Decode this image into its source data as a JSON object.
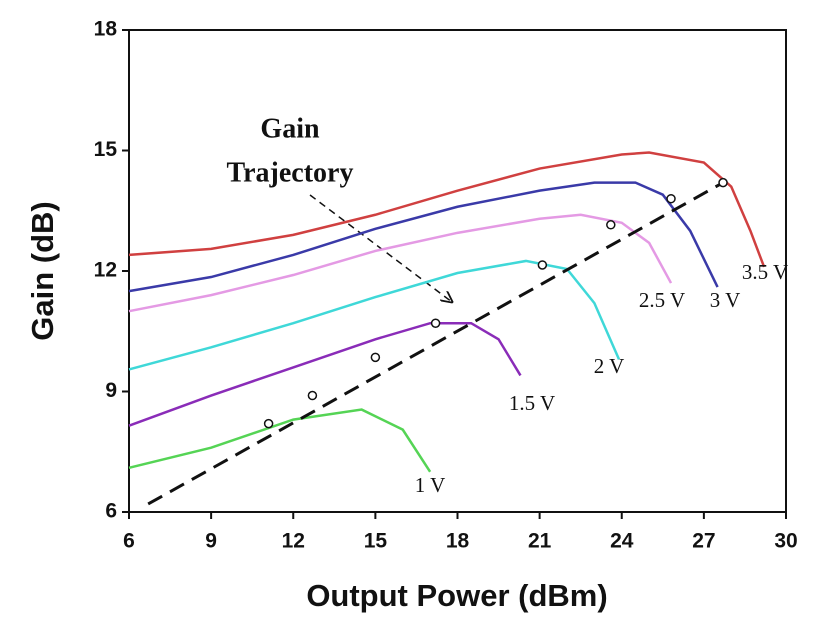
{
  "chart_data": {
    "type": "line",
    "xlabel": "Output Power (dBm)",
    "ylabel": "Gain (dB)",
    "xlim": [
      6,
      30
    ],
    "xticks": [
      6,
      9,
      12,
      15,
      18,
      21,
      24,
      27,
      30
    ],
    "ylim": [
      6,
      18
    ],
    "yticks": [
      6,
      9,
      12,
      15,
      18
    ],
    "series": [
      {
        "name": "1 V",
        "color": "#55d455",
        "x": [
          6,
          9,
          12,
          14.5,
          16,
          17
        ],
        "values": [
          7.1,
          7.6,
          8.3,
          8.55,
          8.05,
          7.0
        ]
      },
      {
        "name": "1.5 V",
        "color": "#8a2cb8",
        "x": [
          6,
          9,
          12,
          15,
          17,
          18.5,
          19.5,
          20.3
        ],
        "values": [
          8.15,
          8.9,
          9.6,
          10.3,
          10.7,
          10.7,
          10.3,
          9.4
        ]
      },
      {
        "name": "2 V",
        "color": "#3fd8d8",
        "x": [
          6,
          9,
          12,
          15,
          18,
          20.5,
          22,
          23,
          23.9
        ],
        "values": [
          9.55,
          10.1,
          10.7,
          11.35,
          11.95,
          12.25,
          12.05,
          11.2,
          9.8
        ]
      },
      {
        "name": "2.5 V",
        "color": "#e49ae4",
        "x": [
          6,
          9,
          12,
          15,
          18,
          21,
          22.5,
          24,
          25,
          25.8
        ],
        "values": [
          11.0,
          11.4,
          11.9,
          12.5,
          12.95,
          13.3,
          13.4,
          13.2,
          12.7,
          11.7
        ]
      },
      {
        "name": "3 V",
        "color": "#3a3aa8",
        "x": [
          6,
          9,
          12,
          15,
          18,
          21,
          23,
          24.5,
          25.5,
          26.5,
          27.5
        ],
        "values": [
          11.5,
          11.85,
          12.4,
          13.05,
          13.6,
          14.0,
          14.2,
          14.2,
          13.9,
          13.0,
          11.6
        ]
      },
      {
        "name": "3.5 V",
        "color": "#d04040",
        "x": [
          6,
          9,
          12,
          15,
          18,
          21,
          24,
          25,
          27,
          28,
          28.7,
          29.2
        ],
        "values": [
          12.4,
          12.55,
          12.9,
          13.4,
          14.0,
          14.55,
          14.9,
          14.95,
          14.7,
          14.1,
          13.0,
          12.1
        ]
      }
    ],
    "trajectory": {
      "x": [
        6.7,
        27.7
      ],
      "values": [
        6.2,
        14.2
      ]
    },
    "trajectory_points": {
      "x": [
        11.1,
        12.7,
        15,
        17.2,
        21.1,
        23.6,
        25.8,
        27.7
      ],
      "values": [
        8.2,
        8.9,
        9.85,
        10.7,
        12.15,
        13.15,
        13.8,
        14.2
      ]
    },
    "annotation": [
      "Gain",
      "Trajectory"
    ]
  }
}
